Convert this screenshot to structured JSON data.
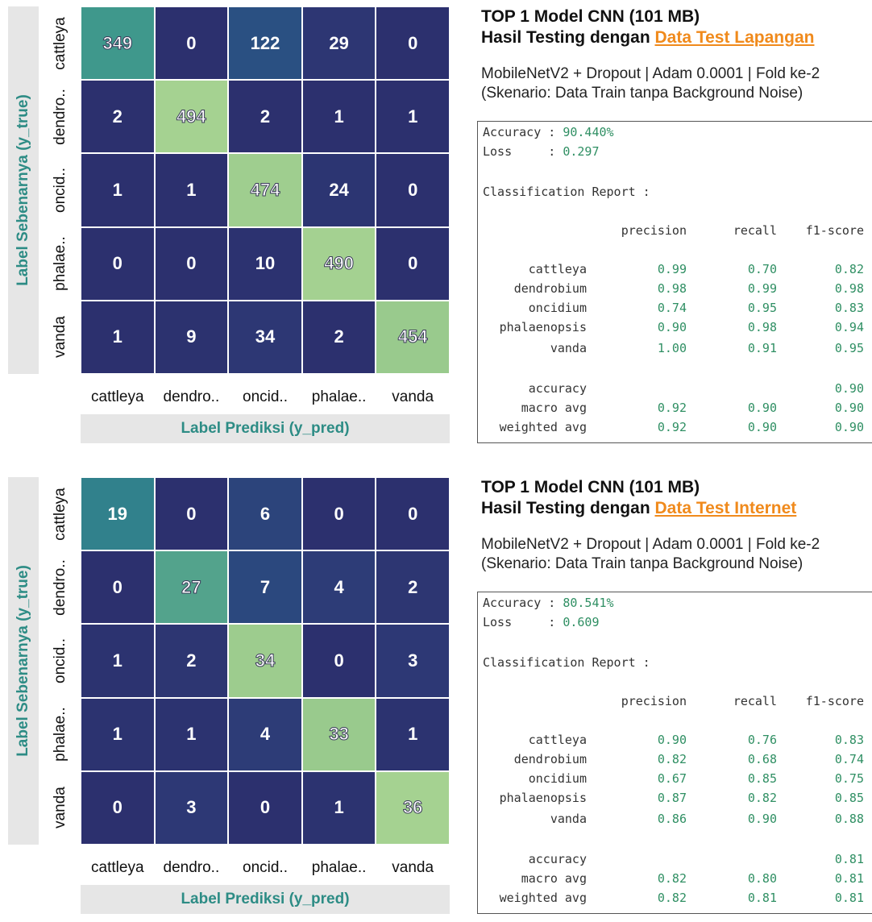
{
  "chart_data": [
    {
      "type": "heatmap",
      "xlabel": "Label Prediksi (y_pred)",
      "ylabel": "Label Sebenarnya (y_true)",
      "x_tick_labels": [
        "cattleya",
        "dendro..",
        "oncid..",
        "phalae..",
        "vanda"
      ],
      "y_tick_labels": [
        "cattleya",
        "dendro..",
        "oncid..",
        "phalae..",
        "vanda"
      ],
      "values": [
        [
          349,
          0,
          122,
          29,
          0
        ],
        [
          2,
          494,
          2,
          1,
          1
        ],
        [
          1,
          1,
          474,
          24,
          0
        ],
        [
          0,
          0,
          10,
          490,
          0
        ],
        [
          1,
          9,
          34,
          2,
          454
        ]
      ]
    },
    {
      "type": "heatmap",
      "xlabel": "Label Prediksi (y_pred)",
      "ylabel": "Label Sebenarnya (y_true)",
      "x_tick_labels": [
        "cattleya",
        "dendro..",
        "oncid..",
        "phalae..",
        "vanda"
      ],
      "y_tick_labels": [
        "cattleya",
        "dendro..",
        "oncid..",
        "phalae..",
        "vanda"
      ],
      "values": [
        [
          19,
          0,
          6,
          0,
          0
        ],
        [
          0,
          27,
          7,
          4,
          2
        ],
        [
          1,
          2,
          34,
          0,
          3
        ],
        [
          1,
          1,
          4,
          33,
          1
        ],
        [
          0,
          3,
          0,
          1,
          36
        ]
      ]
    }
  ],
  "panels": [
    {
      "title_line1": "TOP 1 Model CNN (101 MB)",
      "title_prefix": "Hasil Testing dengan ",
      "title_highlight": "Data Test Lapangan",
      "subtitle_line1": "MobileNetV2 + Dropout | Adam 0.0001 | Fold ke-2",
      "subtitle_line2": "(Skenario: Data Train tanpa Background Noise)",
      "report": {
        "accuracy_label": "Accuracy : ",
        "accuracy_value": "90.440%",
        "loss_label": "Loss     : ",
        "loss_value": "0.297",
        "heading": "Classification Report :",
        "columns": [
          "precision",
          "recall",
          "f1-score"
        ],
        "rows": [
          {
            "label": "cattleya",
            "values": [
              "0.99",
              "0.70",
              "0.82"
            ]
          },
          {
            "label": "dendrobium",
            "values": [
              "0.98",
              "0.99",
              "0.98"
            ]
          },
          {
            "label": "oncidium",
            "values": [
              "0.74",
              "0.95",
              "0.83"
            ]
          },
          {
            "label": "phalaenopsis",
            "values": [
              "0.90",
              "0.98",
              "0.94"
            ]
          },
          {
            "label": "vanda",
            "values": [
              "1.00",
              "0.91",
              "0.95"
            ]
          }
        ],
        "summary": [
          {
            "label": "accuracy",
            "values": [
              "",
              "",
              "0.90"
            ]
          },
          {
            "label": "macro avg",
            "values": [
              "0.92",
              "0.90",
              "0.90"
            ]
          },
          {
            "label": "weighted avg",
            "values": [
              "0.92",
              "0.90",
              "0.90"
            ]
          }
        ]
      }
    },
    {
      "title_line1": "TOP 1 Model CNN (101 MB)",
      "title_prefix": "Hasil Testing dengan ",
      "title_highlight": "Data Test Internet",
      "subtitle_line1": "MobileNetV2 + Dropout | Adam 0.0001 | Fold ke-2",
      "subtitle_line2": "(Skenario: Data Train tanpa Background Noise)",
      "report": {
        "accuracy_label": "Accuracy : ",
        "accuracy_value": "80.541%",
        "loss_label": "Loss     : ",
        "loss_value": "0.609",
        "heading": "Classification Report :",
        "columns": [
          "precision",
          "recall",
          "f1-score"
        ],
        "rows": [
          {
            "label": "cattleya",
            "values": [
              "0.90",
              "0.76",
              "0.83"
            ]
          },
          {
            "label": "dendrobium",
            "values": [
              "0.82",
              "0.68",
              "0.74"
            ]
          },
          {
            "label": "oncidium",
            "values": [
              "0.67",
              "0.85",
              "0.75"
            ]
          },
          {
            "label": "phalaenopsis",
            "values": [
              "0.87",
              "0.82",
              "0.85"
            ]
          },
          {
            "label": "vanda",
            "values": [
              "0.86",
              "0.90",
              "0.88"
            ]
          }
        ],
        "summary": [
          {
            "label": "accuracy",
            "values": [
              "",
              "",
              "0.81"
            ]
          },
          {
            "label": "macro avg",
            "values": [
              "0.82",
              "0.80",
              "0.81"
            ]
          },
          {
            "label": "weighted avg",
            "values": [
              "0.82",
              "0.81",
              "0.81"
            ]
          }
        ]
      }
    }
  ]
}
